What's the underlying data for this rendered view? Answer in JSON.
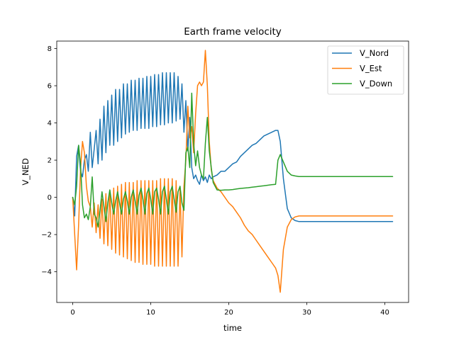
{
  "chart_data": {
    "type": "line",
    "title": "Earth frame velocity",
    "xlabel": "time",
    "ylabel": "V_NED",
    "xlim": [
      -2.05,
      43.05
    ],
    "ylim": [
      -5.65,
      8.4
    ],
    "xticks": [
      0,
      10,
      20,
      30,
      40
    ],
    "xtick_labels": [
      "0",
      "10",
      "20",
      "30",
      "40"
    ],
    "yticks": [
      -4,
      -2,
      0,
      2,
      4,
      6,
      8
    ],
    "ytick_labels": [
      "−4",
      "−2",
      "0",
      "2",
      "4",
      "6",
      "8"
    ],
    "grid": false,
    "legend_position": "top-right",
    "series": [
      {
        "name": "V_Nord",
        "color": "#1f77b4",
        "x": [
          0,
          0.25,
          0.5,
          0.75,
          1.0,
          1.25,
          1.5,
          1.75,
          2.0,
          2.25,
          2.5,
          2.75,
          3.0,
          3.25,
          3.5,
          3.75,
          4.0,
          4.25,
          4.5,
          4.75,
          5.0,
          5.25,
          5.5,
          5.75,
          6.0,
          6.25,
          6.5,
          6.75,
          7.0,
          7.25,
          7.5,
          7.75,
          8.0,
          8.25,
          8.5,
          8.75,
          9.0,
          9.25,
          9.5,
          9.75,
          10.0,
          10.25,
          10.5,
          10.75,
          11.0,
          11.25,
          11.5,
          11.75,
          12.0,
          12.25,
          12.5,
          12.75,
          13.0,
          13.25,
          13.5,
          13.75,
          14.0,
          14.25,
          14.5,
          14.75,
          15.0,
          15.25,
          15.5,
          15.75,
          16.0,
          16.25,
          16.5,
          16.75,
          17.0,
          17.25,
          17.5,
          17.75,
          18.0,
          18.5,
          19.0,
          19.5,
          20.0,
          20.5,
          21.0,
          21.5,
          22.0,
          22.5,
          23.0,
          23.5,
          24.0,
          24.5,
          25.0,
          25.5,
          26.0,
          26.3,
          26.6,
          27.0,
          27.5,
          28.0,
          28.5,
          29.0,
          29.5,
          30.0,
          31.0,
          32.0,
          33.0,
          34.0,
          35.0,
          36.0,
          37.0,
          38.0,
          39.0,
          40.0,
          41.0
        ],
        "y": [
          0,
          -1.0,
          2.2,
          2.8,
          1.4,
          1.1,
          2.0,
          2.3,
          1.4,
          3.5,
          1.6,
          2.6,
          3.6,
          1.8,
          4.2,
          2.0,
          4.9,
          2.4,
          5.2,
          2.8,
          5.5,
          2.8,
          5.8,
          3.0,
          5.8,
          3.2,
          6.1,
          3.4,
          6.1,
          3.5,
          6.3,
          3.6,
          6.3,
          3.6,
          6.4,
          3.7,
          6.4,
          3.7,
          6.5,
          3.7,
          6.5,
          3.8,
          6.6,
          3.8,
          6.6,
          3.9,
          6.7,
          3.9,
          6.7,
          4.0,
          6.7,
          4.0,
          6.7,
          4.1,
          6.5,
          4.2,
          6.1,
          3.5,
          5.2,
          2.5,
          4.3,
          1.6,
          1.0,
          1.2,
          0.9,
          0.7,
          1.2,
          0.9,
          1.1,
          0.8,
          1.2,
          1.0,
          1.1,
          1.2,
          1.4,
          1.4,
          1.6,
          1.8,
          1.9,
          2.2,
          2.4,
          2.6,
          2.8,
          2.9,
          3.1,
          3.3,
          3.4,
          3.5,
          3.6,
          3.6,
          3.0,
          1.0,
          -0.6,
          -1.1,
          -1.25,
          -1.3,
          -1.3,
          -1.3,
          -1.3,
          -1.3,
          -1.3,
          -1.3,
          -1.3,
          -1.3,
          -1.3,
          -1.3,
          -1.3,
          -1.3,
          -1.3
        ]
      },
      {
        "name": "V_Est",
        "color": "#ff7f0e",
        "x": [
          0,
          0.25,
          0.5,
          0.75,
          1.0,
          1.25,
          1.5,
          1.75,
          2.0,
          2.25,
          2.5,
          2.75,
          3.0,
          3.25,
          3.5,
          3.75,
          4.0,
          4.25,
          4.5,
          4.75,
          5.0,
          5.25,
          5.5,
          5.75,
          6.0,
          6.25,
          6.5,
          6.75,
          7.0,
          7.25,
          7.5,
          7.75,
          8.0,
          8.25,
          8.5,
          8.75,
          9.0,
          9.25,
          9.5,
          9.75,
          10.0,
          10.25,
          10.5,
          10.75,
          11.0,
          11.25,
          11.5,
          11.75,
          12.0,
          12.25,
          12.5,
          12.75,
          13.0,
          13.25,
          13.5,
          13.75,
          14.0,
          14.25,
          14.5,
          14.75,
          15.0,
          15.25,
          15.5,
          15.75,
          16.0,
          16.25,
          16.5,
          16.75,
          17.0,
          17.25,
          17.5,
          17.75,
          18.0,
          18.5,
          19.0,
          19.5,
          20.0,
          20.5,
          21.0,
          21.5,
          22.0,
          22.5,
          23.0,
          23.5,
          24.0,
          24.5,
          25.0,
          25.5,
          26.0,
          26.3,
          26.6,
          27.0,
          27.5,
          28.0,
          28.5,
          29.0,
          29.5,
          30.0,
          31.0,
          32.0,
          33.0,
          34.0,
          35.0,
          36.0,
          37.0,
          38.0,
          39.0,
          40.0,
          41.0
        ],
        "y": [
          0,
          -2.0,
          -3.9,
          -1.5,
          1.5,
          3.0,
          2.4,
          0.6,
          -0.2,
          -0.5,
          -1.6,
          -0.3,
          -1.9,
          -0.4,
          -2.2,
          -0.1,
          -2.5,
          0.2,
          -2.6,
          0.4,
          -2.8,
          0.5,
          -3.0,
          0.6,
          -3.1,
          0.7,
          -3.2,
          0.8,
          -3.3,
          0.8,
          -3.4,
          0.8,
          -3.5,
          0.9,
          -3.5,
          0.9,
          -3.6,
          0.9,
          -3.6,
          0.9,
          -3.6,
          0.9,
          -3.7,
          0.9,
          -3.7,
          1.0,
          -3.7,
          1.0,
          -3.7,
          1.0,
          -3.7,
          1.0,
          -3.7,
          0.9,
          -3.7,
          0.5,
          -3.2,
          0.6,
          2.0,
          4.9,
          3.2,
          3.8,
          2.4,
          4.5,
          6.0,
          6.2,
          6.0,
          6.2,
          7.9,
          6.0,
          3.0,
          1.5,
          0.9,
          0.5,
          0.3,
          0.0,
          -0.3,
          -0.5,
          -0.8,
          -1.1,
          -1.5,
          -1.8,
          -2.0,
          -2.3,
          -2.6,
          -2.9,
          -3.2,
          -3.5,
          -3.8,
          -4.2,
          -5.1,
          -2.8,
          -1.6,
          -1.2,
          -1.05,
          -1.0,
          -1.0,
          -1.0,
          -1.0,
          -1.0,
          -1.0,
          -1.0,
          -1.0,
          -1.0,
          -1.0,
          -1.0,
          -1.0,
          -1.0,
          -1.0
        ]
      },
      {
        "name": "V_Down",
        "color": "#2ca02c",
        "x": [
          0,
          0.25,
          0.5,
          0.75,
          1.0,
          1.25,
          1.5,
          1.75,
          2.0,
          2.25,
          2.5,
          2.75,
          3.0,
          3.25,
          3.5,
          3.75,
          4.0,
          4.25,
          4.5,
          4.75,
          5.0,
          5.25,
          5.5,
          5.75,
          6.0,
          6.25,
          6.5,
          6.75,
          7.0,
          7.25,
          7.5,
          7.75,
          8.0,
          8.25,
          8.5,
          8.75,
          9.0,
          9.25,
          9.5,
          9.75,
          10.0,
          10.25,
          10.5,
          10.75,
          11.0,
          11.25,
          11.5,
          11.75,
          12.0,
          12.25,
          12.5,
          12.75,
          13.0,
          13.25,
          13.5,
          13.75,
          14.0,
          14.25,
          14.5,
          14.75,
          15.0,
          15.25,
          15.5,
          15.75,
          16.0,
          16.25,
          16.5,
          16.75,
          17.0,
          17.25,
          17.5,
          17.75,
          18.0,
          18.5,
          19.0,
          19.5,
          20.0,
          20.5,
          21.0,
          21.5,
          22.0,
          22.5,
          23.0,
          23.5,
          24.0,
          24.5,
          25.0,
          25.5,
          26.0,
          26.3,
          26.6,
          27.0,
          27.5,
          28.0,
          28.5,
          29.0,
          29.5,
          30.0,
          31.0,
          32.0,
          33.0,
          34.0,
          35.0,
          36.0,
          37.0,
          38.0,
          39.0,
          40.0,
          41.0
        ],
        "y": [
          0,
          -0.4,
          0.6,
          2.8,
          1.8,
          -0.4,
          -1.1,
          -0.9,
          -1.2,
          -0.5,
          1.1,
          -0.9,
          -1.1,
          -1.6,
          -0.7,
          0.3,
          -0.5,
          -1.3,
          -0.3,
          0.4,
          -0.3,
          -0.9,
          -0.2,
          0.3,
          -0.3,
          -0.9,
          -0.1,
          0.3,
          -0.2,
          -0.9,
          0.0,
          0.4,
          -0.2,
          -0.9,
          0.1,
          0.5,
          -0.1,
          -0.9,
          0.2,
          0.5,
          -0.1,
          -0.9,
          0.3,
          0.5,
          -0.1,
          -0.9,
          0.3,
          0.6,
          -0.1,
          -0.9,
          0.3,
          0.6,
          -0.1,
          -0.8,
          0.3,
          0.6,
          -0.3,
          -0.7,
          2.4,
          2.7,
          1.6,
          5.6,
          2.9,
          1.7,
          2.5,
          1.6,
          1.2,
          1.0,
          2.9,
          4.3,
          2.5,
          1.6,
          0.8,
          0.4,
          0.38,
          0.4,
          0.4,
          0.42,
          0.45,
          0.48,
          0.5,
          0.52,
          0.55,
          0.57,
          0.6,
          0.62,
          0.65,
          0.68,
          0.7,
          2.0,
          2.3,
          1.9,
          1.4,
          1.2,
          1.15,
          1.12,
          1.12,
          1.12,
          1.12,
          1.12,
          1.12,
          1.12,
          1.12,
          1.12,
          1.12,
          1.12,
          1.12,
          1.12,
          1.12
        ]
      }
    ]
  }
}
